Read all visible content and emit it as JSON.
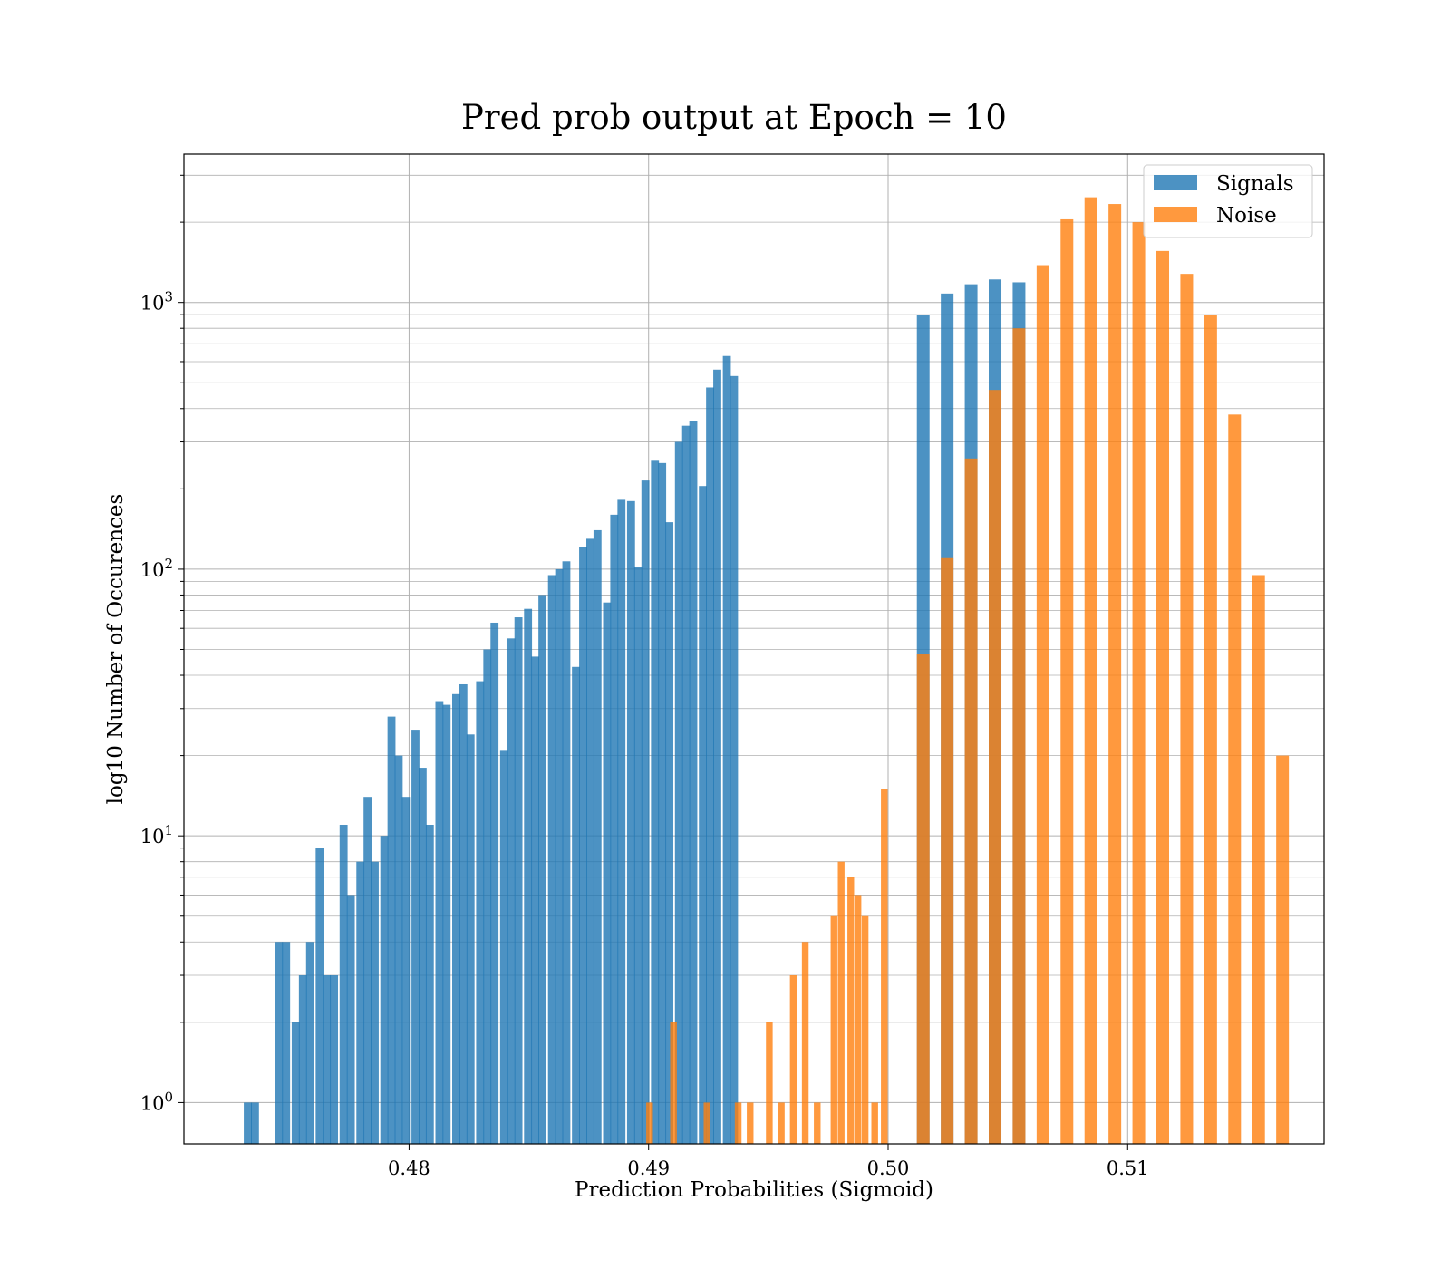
{
  "chart_data": {
    "type": "bar",
    "title": "Pred prob output at Epoch = 10",
    "xlabel": "Prediction Probabilities (Sigmoid)",
    "ylabel": "log10 Number of Occurences",
    "xlim": [
      0.4706,
      0.5182
    ],
    "ylim": [
      0.7,
      3600
    ],
    "y_scale": "log",
    "grid": true,
    "legend_position": "top-right",
    "x_ticks": [
      0.48,
      0.49,
      0.5,
      0.51
    ],
    "x_tick_labels": [
      "0.48",
      "0.49",
      "0.50",
      "0.51"
    ],
    "y_ticks": [
      1,
      10,
      100,
      1000
    ],
    "y_tick_labels": [
      {
        "base": "10",
        "exp": "0"
      },
      {
        "base": "10",
        "exp": "1"
      },
      {
        "base": "10",
        "exp": "2"
      },
      {
        "base": "10",
        "exp": "3"
      }
    ],
    "series": [
      {
        "name": "Signals",
        "color": "#1f77b4",
        "bin_width": 0.000333,
        "x": [
          0.4731,
          0.4734,
          0.4744,
          0.4747,
          0.4751,
          0.4754,
          0.4757,
          0.4761,
          0.4764,
          0.4767,
          0.4771,
          0.4774,
          0.4778,
          0.4781,
          0.4784,
          0.4788,
          0.4791,
          0.4794,
          0.4797,
          0.4801,
          0.4804,
          0.4807,
          0.4811,
          0.4814,
          0.4818,
          0.4821,
          0.4824,
          0.4828,
          0.4831,
          0.4834,
          0.4838,
          0.4841,
          0.4844,
          0.4848,
          0.4851,
          0.4854,
          0.4858,
          0.4861,
          0.4864,
          0.4868,
          0.4871,
          0.4874,
          0.4877,
          0.4881,
          0.4884,
          0.4887,
          0.4891,
          0.4894,
          0.4897,
          0.4901,
          0.4904,
          0.4907,
          0.4911,
          0.4914,
          0.4917,
          0.4921,
          0.4924,
          0.4927,
          0.4931,
          0.4934,
          0.4937,
          0.4941,
          0.4944,
          0.4947,
          0.4951,
          0.4954,
          0.4957,
          0.4961,
          0.4964,
          0.4967,
          0.4971,
          0.4974,
          0.4977,
          0.4981,
          0.4984,
          0.4987,
          0.4991,
          0.4994,
          0.4997
        ],
        "values": [
          1,
          1,
          4,
          4,
          2,
          3,
          4,
          9,
          3,
          3,
          11,
          6,
          8,
          14,
          8,
          10,
          28,
          20,
          14,
          25,
          18,
          11,
          32,
          31,
          34,
          37,
          24,
          38,
          50,
          63,
          21,
          55,
          66,
          71,
          47,
          80,
          95,
          100,
          107,
          43,
          121,
          130,
          140,
          75,
          160,
          182,
          180,
          102,
          215,
          255,
          250,
          150,
          300,
          345,
          360,
          205,
          480,
          560,
          630,
          530,
          0,
          0,
          0,
          0,
          0,
          0,
          0,
          0,
          0,
          0,
          0,
          0,
          0,
          0,
          0,
          0,
          0,
          0,
          0
        ]
      },
      {
        "name": "",
        "color": "#1f77b4",
        "bin_width": 0.00053,
        "x": [
          0.5012,
          0.5022,
          0.5032,
          0.5042,
          0.5052
        ],
        "values": [
          900,
          1080,
          1170,
          1220,
          1190
        ]
      },
      {
        "name": "Noise",
        "color": "#ff7f0e",
        "bin_width": 0.00053,
        "x": [
          0.5012,
          0.5022,
          0.5032,
          0.5042,
          0.5052,
          0.5062,
          0.5072,
          0.5082,
          0.5092,
          0.5102,
          0.5112,
          0.5122,
          0.5132,
          0.5142,
          0.5152,
          0.5162
        ],
        "values": [
          48,
          110,
          260,
          470,
          800,
          1380,
          2050,
          2480,
          2340,
          2000,
          1560,
          1280,
          900,
          380,
          95,
          20
        ]
      },
      {
        "name": "",
        "color": "#ff7f0e",
        "bin_width": 0.00028,
        "x": [
          0.4899,
          0.4909,
          0.4923,
          0.4936,
          0.4941,
          0.4949,
          0.4954,
          0.4959,
          0.4964,
          0.4969,
          0.4976,
          0.4979,
          0.4983,
          0.4986,
          0.4989,
          0.4993,
          0.4997
        ],
        "values": [
          1,
          2,
          1,
          1,
          1,
          2,
          1,
          3,
          4,
          1,
          5,
          8,
          7,
          6,
          5,
          1,
          15
        ]
      }
    ]
  }
}
